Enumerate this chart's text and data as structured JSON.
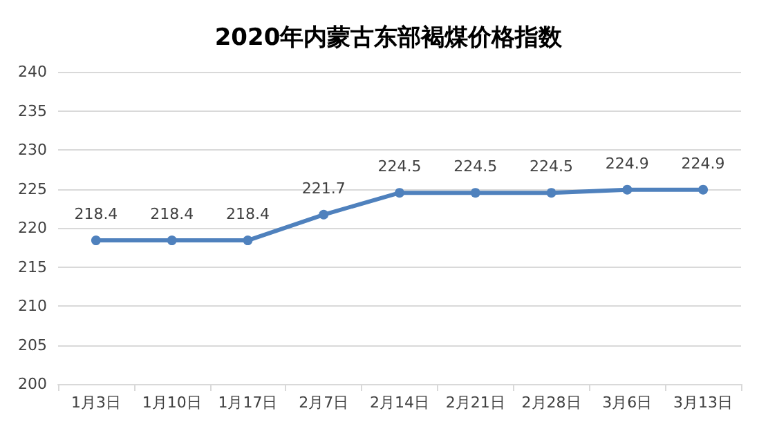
{
  "chart_data": {
    "type": "line",
    "title": "2020年内蒙古东部褐煤价格指数",
    "categories": [
      "1月3日",
      "1月10日",
      "1月17日",
      "2月7日",
      "2月14日",
      "2月21日",
      "2月28日",
      "3月6日",
      "3月13日"
    ],
    "series": [
      {
        "color": "#4f81bd",
        "values": [
          218.4,
          218.4,
          218.4,
          221.7,
          224.5,
          224.5,
          224.5,
          224.9,
          224.9
        ]
      }
    ],
    "ylim": [
      200,
      240
    ],
    "yticks": [
      200,
      205,
      210,
      215,
      220,
      225,
      230,
      235,
      240
    ],
    "grid": "y",
    "marker": "circle",
    "line_style": "solid",
    "data_labels": true
  }
}
